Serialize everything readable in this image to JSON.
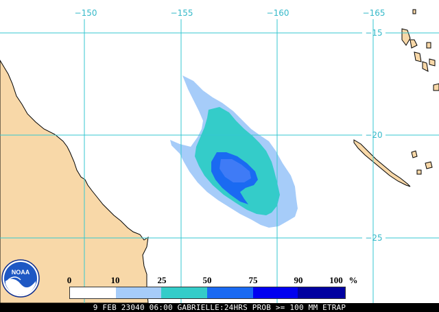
{
  "map": {
    "longitude_labels": [
      "−150",
      "−155",
      "−160",
      "−165"
    ],
    "latitude_labels": [
      "−15",
      "−20",
      "−25"
    ]
  },
  "legend": {
    "ticks": [
      "0",
      "10",
      "25",
      "50",
      "75",
      "90",
      "100"
    ],
    "unit": "%",
    "colors": [
      "#ffffff",
      "#a6ccf9",
      "#34ccc9",
      "#1a6af2",
      "#0000f0",
      "#0000a0"
    ]
  },
  "footer": {
    "caption": "9 FEB 23040 06:00 GABRIELLE:24HRS PROB >= 100 MM ETRAP"
  },
  "logo": {
    "text": "NOAA"
  },
  "colors": {
    "land": "#f8d8a8",
    "ocean": "#ffffff",
    "gridlines": "#35c7d1"
  }
}
